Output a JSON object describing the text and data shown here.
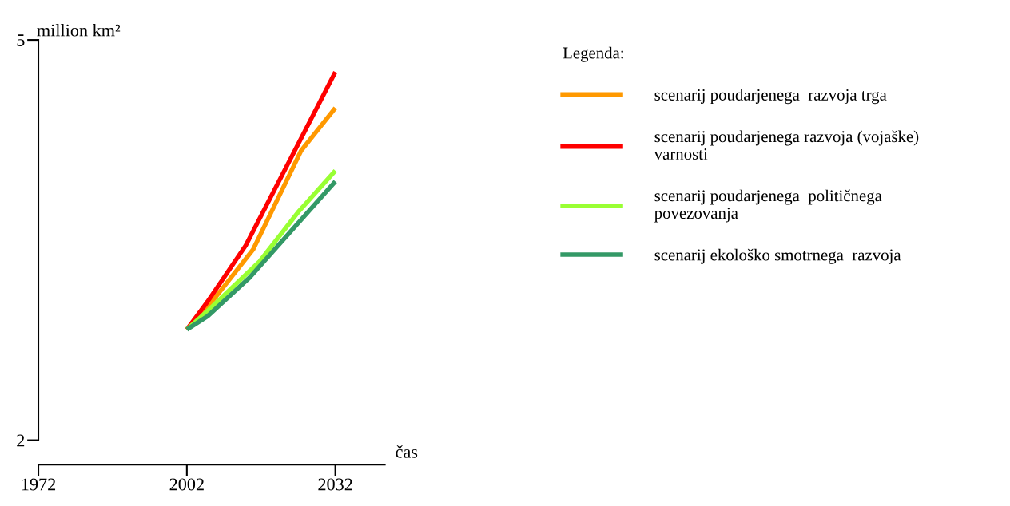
{
  "chart_data": {
    "type": "line",
    "ylabel": "million km²",
    "xlabel": "čas",
    "legend_title": "Legenda:",
    "xlim": [
      1972,
      2042
    ],
    "xticks": [
      1972,
      2002,
      2032
    ],
    "ylim": [
      2,
      5
    ],
    "yticks": [
      2,
      5
    ],
    "grid": false,
    "legend": "right",
    "marker": "none",
    "line_style": "solid",
    "series": [
      {
        "name": "scenarij poudarjenega  razvoja trga",
        "color": "#ff9900",
        "x": [
          2002,
          2006.9,
          2015.4,
          2025.1,
          2032
        ],
        "values": [
          2.83,
          3.03,
          3.43,
          4.17,
          4.49
        ]
      },
      {
        "name": "scenarij poudarjenega razvoja (vojaške)\nvarnosti",
        "color": "#ff0000",
        "x": [
          2002,
          2006.2,
          2013.9,
          2023.1,
          2032
        ],
        "values": [
          2.83,
          3.04,
          3.46,
          4.12,
          4.76
        ]
      },
      {
        "name": "scenarij poudarjenega  političnega\npovezovanja",
        "color": "#99ff33",
        "x": [
          2002,
          2006.2,
          2016.7,
          2024.5,
          2032
        ],
        "values": [
          2.83,
          2.97,
          3.34,
          3.71,
          4.02
        ]
      },
      {
        "name": "scenarij ekološko smotrnega  razvoja",
        "color": "#339966",
        "x": [
          2002,
          2006.2,
          2014.7,
          2032
        ],
        "values": [
          2.83,
          2.93,
          3.22,
          3.94
        ]
      }
    ]
  }
}
